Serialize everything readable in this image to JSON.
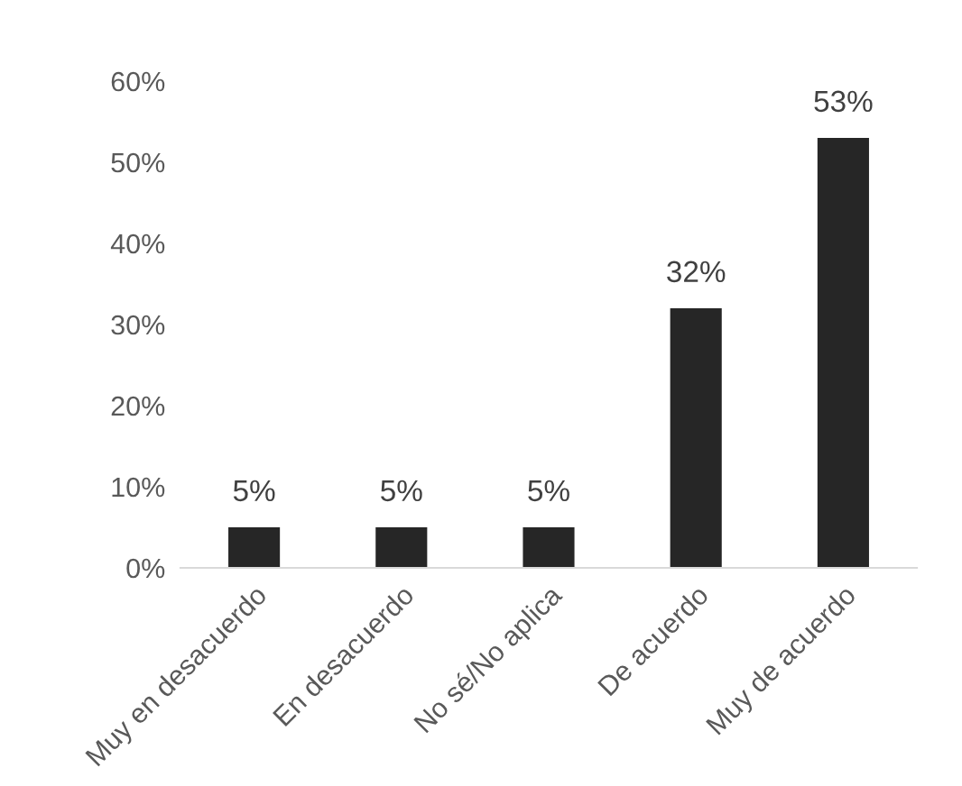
{
  "chart_data": {
    "type": "bar",
    "categories": [
      "Muy en desacuerdo",
      "En desacuerdo",
      "No sé/No aplica",
      "De acuerdo",
      "Muy de acuerdo"
    ],
    "values": [
      5,
      5,
      5,
      32,
      53
    ],
    "value_labels": [
      "5%",
      "5%",
      "5%",
      "32%",
      "53%"
    ],
    "color": "#262626",
    "ylim": [
      0,
      60
    ],
    "yticks": [
      {
        "value": 0,
        "label": "0%"
      },
      {
        "value": 10,
        "label": "10%"
      },
      {
        "value": 20,
        "label": "20%"
      },
      {
        "value": 30,
        "label": "30%"
      },
      {
        "value": 40,
        "label": "40%"
      },
      {
        "value": 50,
        "label": "50%"
      },
      {
        "value": 60,
        "label": "60%"
      }
    ],
    "grid": false,
    "legend": false
  }
}
